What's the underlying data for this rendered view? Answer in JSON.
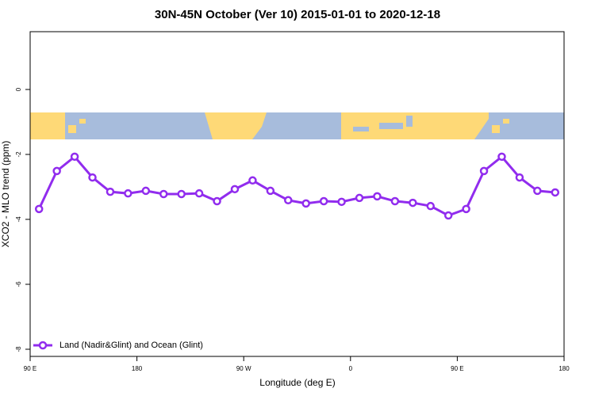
{
  "chart_data": {
    "type": "line",
    "title": "30N-45N October (Ver 10)   2015-01-01 to 2020-12-18",
    "xlabel": "Longitude (deg E)",
    "ylabel": "XCO2 - MLO trend (ppm)",
    "x": [
      97.5,
      112.5,
      127.5,
      142.5,
      157.5,
      172.5,
      187.5,
      202.5,
      217.5,
      232.5,
      247.5,
      262.5,
      277.5,
      292.5,
      307.5,
      322.5,
      337.5,
      352.5,
      367.5,
      382.5,
      397.5,
      412.5,
      427.5,
      442.5,
      457.5,
      472.5,
      487.5,
      502.5,
      517.5,
      532.5
    ],
    "series": [
      {
        "name": "Land (Nadir&Glint) and Ocean (Glint)",
        "color": "#912cee",
        "values": [
          -3.68,
          -2.51,
          -2.07,
          -2.71,
          -3.15,
          -3.2,
          -3.12,
          -3.22,
          -3.22,
          -3.2,
          -3.44,
          -3.07,
          -2.8,
          -3.12,
          -3.41,
          -3.51,
          -3.44,
          -3.46,
          -3.34,
          -3.29,
          -3.44,
          -3.49,
          -3.59,
          -3.88,
          -3.68,
          -2.51,
          -2.07,
          -2.71,
          -3.12,
          -3.17
        ]
      }
    ],
    "xlim": [
      90,
      540
    ],
    "xticks": [
      {
        "value": 90,
        "label": "90 E"
      },
      180,
      {
        "value": 270,
        "label": "90 W"
      },
      {
        "value": 360,
        "label": "0"
      },
      {
        "value": 450,
        "label": "90 E"
      },
      {
        "value": 540,
        "label": "180"
      }
    ],
    "ylim": [
      -8.22,
      1.78
    ],
    "yticks": [
      0,
      -2,
      -4,
      -6,
      -8
    ],
    "legend": "bottom-left"
  }
}
